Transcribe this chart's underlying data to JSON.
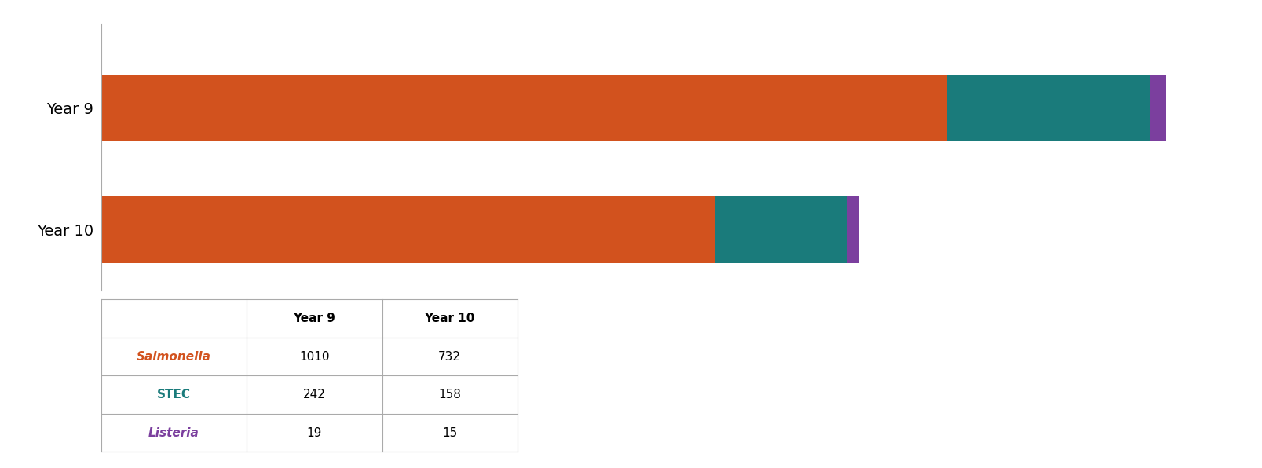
{
  "categories": [
    "Year 9",
    "Year 10"
  ],
  "salmonella": [
    1010,
    732
  ],
  "stec": [
    242,
    158
  ],
  "listeria": [
    19,
    15
  ],
  "colors": {
    "salmonella": "#D2521E",
    "stec": "#1A7B7B",
    "listeria": "#7B3F9E"
  },
  "bar_height": 0.55,
  "background_color": "#ffffff",
  "table_headers": [
    "",
    "Year 9",
    "Year 10"
  ],
  "row_labels": [
    "Salmonella",
    "STEC",
    "Listeria"
  ],
  "row_label_colors": [
    "#D2521E",
    "#1A7B7B",
    "#7B3F9E"
  ],
  "row_label_italic": [
    true,
    false,
    true
  ]
}
